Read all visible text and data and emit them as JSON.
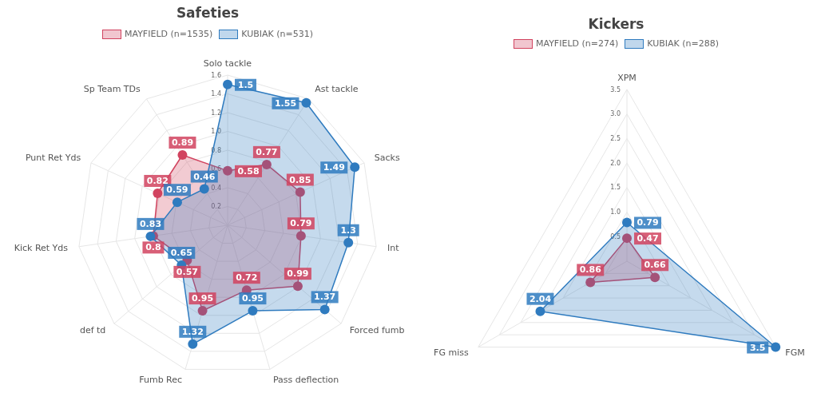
{
  "chart_data": [
    {
      "type": "radar",
      "title": "Safeties",
      "categories": [
        "Solo tackle",
        "Ast tackle",
        "Sacks",
        "Int",
        "Forced fumb",
        "Pass deflection",
        "Fumb Rec",
        "def td",
        "Kick Ret Yds",
        "Punt Ret Yds",
        "Sp Team TDs"
      ],
      "series": [
        {
          "name": "MAYFIELD (n=1535)",
          "color": "#d1435f",
          "values": [
            0.58,
            0.77,
            0.85,
            0.79,
            0.99,
            0.72,
            0.95,
            0.57,
            0.8,
            0.82,
            0.89
          ]
        },
        {
          "name": "KUBIAK (n=531)",
          "color": "#2f7bbf",
          "values": [
            1.5,
            1.55,
            1.49,
            1.3,
            1.37,
            0.95,
            1.32,
            0.65,
            0.83,
            0.59,
            0.46
          ]
        }
      ],
      "ylim": [
        0,
        1.6
      ],
      "yticks": [
        0.2,
        0.4,
        0.6,
        0.8,
        {
          "value": 1,
          "label": "1.0"
        },
        1.2,
        1.4,
        1.6
      ],
      "grid": true,
      "legend": "top",
      "data_labels": true,
      "marker": "circle"
    },
    {
      "type": "radar",
      "title": "Kickers",
      "categories": [
        "XPM",
        "FGM",
        "FG miss"
      ],
      "series": [
        {
          "name": "MAYFIELD (n=274)",
          "color": "#d1435f",
          "values": [
            0.47,
            0.66,
            0.86
          ]
        },
        {
          "name": "KUBIAK (n=288)",
          "color": "#2f7bbf",
          "values": [
            0.79,
            3.5,
            2.04
          ]
        }
      ],
      "ylim": [
        0,
        3.5
      ],
      "yticks": [
        0.5,
        {
          "value": 1,
          "label": "1.0"
        },
        1.5,
        {
          "value": 2,
          "label": "2.0"
        },
        2.5,
        {
          "value": 3,
          "label": "3.0"
        },
        3.5
      ],
      "grid": true,
      "legend": "top",
      "data_labels": true,
      "marker": "circle"
    }
  ]
}
